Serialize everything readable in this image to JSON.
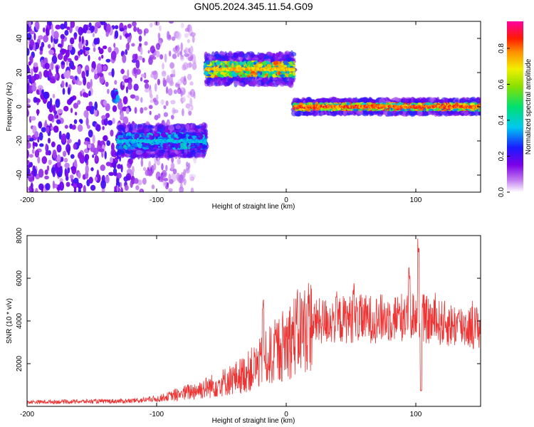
{
  "title": "GN05.2024.345.11.54.G09",
  "colors": {
    "snr_line": "#ee3333",
    "axis": "#000000"
  },
  "chart_data": [
    {
      "type": "heatmap",
      "title": "GN05.2024.345.11.54.G09",
      "xlabel": "Height of straight line (km)",
      "ylabel": "Frequency (Hz)",
      "xlim": [
        -200,
        150
      ],
      "ylim": [
        -50,
        50
      ],
      "xticks": [
        "-200",
        "-100",
        "0",
        "100"
      ],
      "xtick_values": [
        -200,
        -100,
        0,
        100
      ],
      "yticks": [
        "40",
        "20",
        "0",
        "-20",
        "-40"
      ],
      "ytick_values": [
        40,
        20,
        0,
        -20,
        -40
      ],
      "colorbar": {
        "label": "Normalized spectral amplitude",
        "range": [
          0,
          0.95
        ],
        "ticks": [
          "0.0",
          "0.2",
          "0.4",
          "0.6",
          "0.8"
        ],
        "tick_values": [
          0.0,
          0.2,
          0.4,
          0.6,
          0.8
        ],
        "colormap": "rainbow: white-violet-blue-cyan-green-yellow-orange-red-magenta"
      },
      "features": [
        {
          "x_range": [
            -200,
            -130
          ],
          "freq_range": [
            -50,
            50
          ],
          "amplitude": 0.15,
          "kind": "broadband noise"
        },
        {
          "x_range": [
            -134,
            -130
          ],
          "freq_center": 5,
          "amplitude": 0.35,
          "kind": "blob"
        },
        {
          "x_range": [
            -130,
            -62
          ],
          "freq_center": -20,
          "amplitude": 0.4,
          "kind": "band"
        },
        {
          "x_range": [
            -62,
            6
          ],
          "freq_center": 22,
          "amplitude": 0.8,
          "kind": "band"
        },
        {
          "x_range": [
            6,
            150
          ],
          "freq_center": 0,
          "amplitude": 0.9,
          "kind": "band"
        }
      ]
    },
    {
      "type": "line",
      "xlabel": "Height of straight line (km)",
      "ylabel": "SNR (10 * v/v)",
      "xlim": [
        -200,
        150
      ],
      "ylim": [
        0,
        8000
      ],
      "xticks": [
        "-200",
        "-100",
        "0",
        "100"
      ],
      "xtick_values": [
        -200,
        -100,
        0,
        100
      ],
      "yticks": [
        "8000",
        "6000",
        "4000",
        "2000"
      ],
      "ytick_values": [
        8000,
        6000,
        4000,
        2000
      ],
      "envelope_x": [
        -200,
        -120,
        -100,
        -80,
        -60,
        -40,
        -30,
        -20,
        -10,
        0,
        10,
        20,
        30,
        50,
        70,
        90,
        100,
        110,
        130,
        150
      ],
      "envelope_y": [
        200,
        250,
        350,
        600,
        900,
        1300,
        1600,
        2000,
        2500,
        3000,
        3500,
        3900,
        4000,
        4100,
        4100,
        4200,
        4300,
        4000,
        3800,
        3700
      ],
      "spikes": [
        {
          "x": -18,
          "y": 5000
        },
        {
          "x": 52,
          "y": 5800
        },
        {
          "x": 95,
          "y": 6500
        },
        {
          "x": 102,
          "y": 8000
        },
        {
          "x": 104,
          "y": 800
        }
      ]
    }
  ]
}
